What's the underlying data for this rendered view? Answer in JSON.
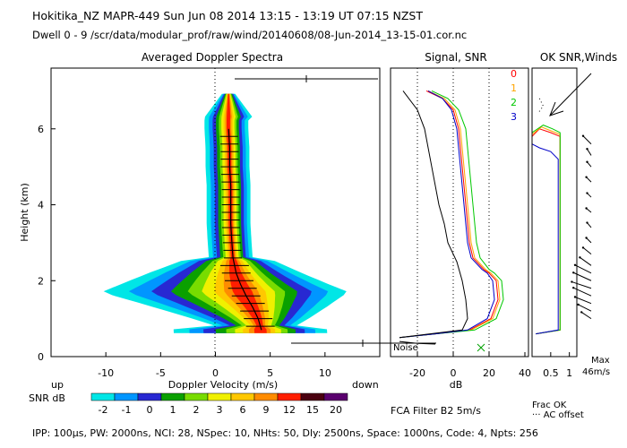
{
  "header": {
    "line1": "Hokitika_NZ   MAPR-449   Sun Jun 08 2014 13:15 - 13:19 UT 07:15 NZST",
    "line2": "Dwell   0 - 9   /scr/data/modular_prof/raw/wind/20140608/08-Jun-2014_13-15-01.cor.nc"
  },
  "footer": {
    "params": "IPP: 100µs,  PW: 2000ns,  NCI: 28,  NSpec: 10, NHts: 50,  Dly: 2500ns,  Space: 1000ns,  Code: 4,  Npts: 256",
    "fca": "FCA Filter B2   5m/s"
  },
  "colorbar": {
    "label": "SNR dB",
    "ticks": [
      "-2",
      "-1",
      "0",
      "1",
      "2",
      "3",
      "6",
      "9",
      "12",
      "15",
      "20"
    ],
    "colors": [
      "#00e6e6",
      "#0096ff",
      "#2828d2",
      "#0aa000",
      "#78dc00",
      "#f0f000",
      "#ffc800",
      "#ff8c00",
      "#ff1e00",
      "#4a0010",
      "#5a006e"
    ]
  },
  "chart_data": [
    {
      "type": "heatmap",
      "title": "Averaged Doppler Spectra",
      "xlabel": "Doppler Velocity (m/s)",
      "ylabel": "Height (km)",
      "xlim": [
        -15,
        15
      ],
      "ylim": [
        0,
        7.6
      ],
      "xticks": [
        "-10",
        "-5",
        "0",
        "5",
        "10"
      ],
      "yticks": [
        "0",
        "2",
        "4",
        "6"
      ],
      "direction_labels": {
        "left": "up",
        "right": "down"
      },
      "peak_profile": [
        {
          "h": 0.7,
          "v": 4.2
        },
        {
          "h": 1.0,
          "v": 3.9
        },
        {
          "h": 1.3,
          "v": 3.4
        },
        {
          "h": 1.6,
          "v": 2.8
        },
        {
          "h": 1.9,
          "v": 2.3
        },
        {
          "h": 2.2,
          "v": 1.9
        },
        {
          "h": 2.6,
          "v": 1.6
        },
        {
          "h": 3.0,
          "v": 1.5
        },
        {
          "h": 3.5,
          "v": 1.4
        },
        {
          "h": 4.0,
          "v": 1.4
        },
        {
          "h": 4.5,
          "v": 1.4
        },
        {
          "h": 5.0,
          "v": 1.3
        },
        {
          "h": 5.5,
          "v": 1.3
        },
        {
          "h": 6.0,
          "v": 1.2
        }
      ]
    },
    {
      "type": "line",
      "title": "Signal, SNR",
      "xlabel": "dB",
      "xlim": [
        -35,
        42
      ],
      "ylim": [
        0,
        7.6
      ],
      "xticks": [
        "-20",
        "0",
        "20",
        "40"
      ],
      "noise_label": "Noise",
      "series": [
        {
          "name": "0",
          "color": "#ff0000",
          "points": [
            [
              -15,
              7.0
            ],
            [
              -6,
              6.8
            ],
            [
              0,
              6.5
            ],
            [
              3,
              6.0
            ],
            [
              5,
              5.0
            ],
            [
              7,
              4.0
            ],
            [
              8,
              3.5
            ],
            [
              9,
              3.0
            ],
            [
              11,
              2.6
            ],
            [
              17,
              2.3
            ],
            [
              20,
              2.2
            ],
            [
              24,
              2.0
            ],
            [
              25,
              1.5
            ],
            [
              21,
              1.0
            ],
            [
              9,
              0.7
            ],
            [
              -10,
              0.6
            ],
            [
              -30,
              0.5
            ]
          ]
        },
        {
          "name": "1",
          "color": "#ffa500",
          "points": [
            [
              -14,
              7.0
            ],
            [
              -5,
              6.8
            ],
            [
              1,
              6.5
            ],
            [
              4,
              6.0
            ],
            [
              6,
              5.0
            ],
            [
              8,
              4.0
            ],
            [
              9,
              3.5
            ],
            [
              10,
              3.0
            ],
            [
              12,
              2.6
            ],
            [
              18,
              2.3
            ],
            [
              21,
              2.2
            ],
            [
              25,
              2.0
            ],
            [
              26,
              1.5
            ],
            [
              22,
              1.0
            ],
            [
              10,
              0.7
            ],
            [
              -10,
              0.6
            ],
            [
              -30,
              0.5
            ]
          ]
        },
        {
          "name": "2",
          "color": "#00c800",
          "points": [
            [
              -12,
              7.0
            ],
            [
              -3,
              6.8
            ],
            [
              3,
              6.5
            ],
            [
              7,
              6.0
            ],
            [
              9,
              5.0
            ],
            [
              11,
              4.0
            ],
            [
              12,
              3.5
            ],
            [
              13,
              3.0
            ],
            [
              15,
              2.6
            ],
            [
              20,
              2.3
            ],
            [
              23,
              2.2
            ],
            [
              27,
              2.0
            ],
            [
              28,
              1.5
            ],
            [
              24,
              1.0
            ],
            [
              12,
              0.7
            ],
            [
              -10,
              0.6
            ],
            [
              -30,
              0.5
            ]
          ]
        },
        {
          "name": "3",
          "color": "#0000c8",
          "points": [
            [
              -14,
              7.0
            ],
            [
              -6,
              6.8
            ],
            [
              -1,
              6.5
            ],
            [
              2,
              6.0
            ],
            [
              4,
              5.0
            ],
            [
              6,
              4.0
            ],
            [
              7,
              3.5
            ],
            [
              8,
              3.0
            ],
            [
              10,
              2.6
            ],
            [
              16,
              2.3
            ],
            [
              19,
              2.2
            ],
            [
              22,
              2.0
            ],
            [
              23,
              1.5
            ],
            [
              19,
              1.0
            ],
            [
              8,
              0.7
            ],
            [
              -10,
              0.6
            ],
            [
              -30,
              0.5
            ]
          ]
        },
        {
          "name": "signal",
          "color": "#000000",
          "points": [
            [
              -28,
              7.0
            ],
            [
              -20,
              6.5
            ],
            [
              -16,
              6.0
            ],
            [
              -12,
              5.0
            ],
            [
              -8,
              4.0
            ],
            [
              -5,
              3.5
            ],
            [
              -3,
              3.0
            ],
            [
              2,
              2.5
            ],
            [
              5,
              2.0
            ],
            [
              7,
              1.5
            ],
            [
              8,
              1.0
            ],
            [
              5,
              0.7
            ],
            [
              -30,
              0.5
            ]
          ]
        }
      ],
      "noise": [
        [
          -30,
          0.4
        ],
        [
          -20,
          0.35
        ],
        [
          -10,
          0.33
        ]
      ]
    },
    {
      "type": "line",
      "title": "OK SNR,Winds",
      "legend": [
        "0",
        "1",
        "2",
        "3"
      ],
      "xticks": [
        "0.5",
        "1"
      ],
      "xlim": [
        0,
        1.2
      ],
      "ylim": [
        0,
        7.6
      ],
      "labels": [
        "Frac OK",
        "··· AC offset",
        "Max",
        "46m/s"
      ],
      "series": [
        {
          "name": "0",
          "color": "#ff0000",
          "points": [
            [
              0,
              0.6
            ],
            [
              0,
              5.8
            ],
            [
              0.2,
              6.0
            ],
            [
              0.5,
              5.9
            ],
            [
              0.75,
              5.8
            ],
            [
              0.75,
              0.7
            ],
            [
              0.1,
              0.6
            ]
          ]
        },
        {
          "name": "1",
          "color": "#ffa500",
          "points": [
            [
              0,
              0.6
            ],
            [
              0,
              5.85
            ],
            [
              0.25,
              6.05
            ],
            [
              0.5,
              5.95
            ],
            [
              0.75,
              5.85
            ],
            [
              0.75,
              0.7
            ],
            [
              0.1,
              0.6
            ]
          ]
        },
        {
          "name": "2",
          "color": "#00c800",
          "points": [
            [
              0,
              0.6
            ],
            [
              0,
              5.9
            ],
            [
              0.3,
              6.1
            ],
            [
              0.55,
              6.0
            ],
            [
              0.75,
              5.9
            ],
            [
              0.75,
              0.7
            ],
            [
              0.1,
              0.6
            ]
          ]
        },
        {
          "name": "3",
          "color": "#0000c8",
          "points": [
            [
              0,
              0.6
            ],
            [
              0,
              5.6
            ],
            [
              0.2,
              5.5
            ],
            [
              0.5,
              5.4
            ],
            [
              0.7,
              5.2
            ],
            [
              0.7,
              0.7
            ],
            [
              0.1,
              0.6
            ]
          ]
        }
      ],
      "ac_offset": [
        [
          0.2,
          6.8
        ],
        [
          0.3,
          6.6
        ],
        [
          0.15,
          6.4
        ]
      ],
      "wind_barbs": [
        {
          "h": 5.6,
          "u": -0.1,
          "v": 0.1
        },
        {
          "h": 5.3,
          "u": -0.05,
          "v": 0.08
        },
        {
          "h": 5.0,
          "u": -0.05,
          "v": 0.06
        },
        {
          "h": 4.6,
          "u": -0.06,
          "v": 0.06
        },
        {
          "h": 4.2,
          "u": -0.05,
          "v": 0.05
        },
        {
          "h": 3.8,
          "u": -0.06,
          "v": 0.05
        },
        {
          "h": 3.4,
          "u": -0.05,
          "v": 0.06
        },
        {
          "h": 3.0,
          "u": -0.06,
          "v": 0.06
        },
        {
          "h": 2.7,
          "u": -0.1,
          "v": 0.08
        },
        {
          "h": 2.4,
          "u": -0.14,
          "v": 0.1
        },
        {
          "h": 2.2,
          "u": -0.2,
          "v": 0.1
        },
        {
          "h": 2.0,
          "u": -0.22,
          "v": 0.1
        },
        {
          "h": 1.8,
          "u": -0.24,
          "v": 0.08
        },
        {
          "h": 1.6,
          "u": -0.22,
          "v": 0.1
        },
        {
          "h": 1.4,
          "u": -0.2,
          "v": 0.08
        },
        {
          "h": 1.2,
          "u": -0.16,
          "v": 0.08
        },
        {
          "h": 1.0,
          "u": -0.12,
          "v": 0.08
        }
      ]
    }
  ]
}
